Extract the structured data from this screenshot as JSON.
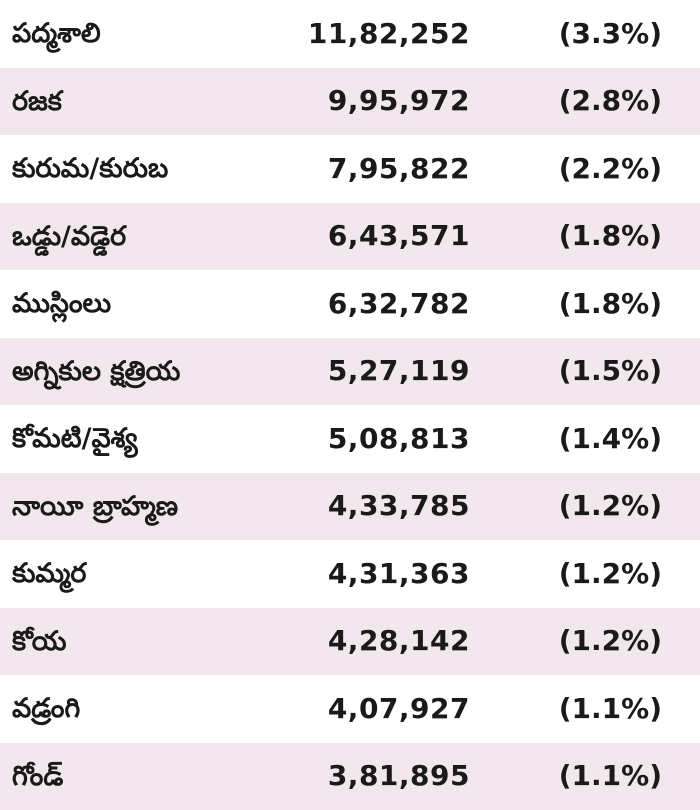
{
  "rows": [
    {
      "caste": "పద్మశాలి",
      "population": "11,82,252",
      "share": "(3.3%)"
    },
    {
      "caste": "రజక",
      "population": "9,95,972",
      "share": "(2.8%)"
    },
    {
      "caste": "కురుమ/కురుబ",
      "population": "7,95,822",
      "share": "(2.2%)"
    },
    {
      "caste": "ఒడ్డు/వడ్డెర",
      "population": "6,43,571",
      "share": "(1.8%)"
    },
    {
      "caste": "ముస్లింలు",
      "population": "6,32,782",
      "share": "(1.8%)"
    },
    {
      "caste": "అగ్నికుల క్షత్రియ",
      "population": "5,27,119",
      "share": "(1.5%)"
    },
    {
      "caste": "కోమటి/వైశ్య",
      "population": "5,08,813",
      "share": "(1.4%)"
    },
    {
      "caste": "నాయీ బ్రాహ్మణ",
      "population": "4,33,785",
      "share": "(1.2%)"
    },
    {
      "caste": "కుమ్మర",
      "population": "4,31,363",
      "share": "(1.2%)"
    },
    {
      "caste": "కోయ",
      "population": "4,28,142",
      "share": "(1.2%)"
    },
    {
      "caste": "వడ్రంగి",
      "population": "4,07,927",
      "share": "(1.1%)"
    },
    {
      "caste": "గోండ్",
      "population": "3,81,895",
      "share": "(1.1%)"
    }
  ],
  "colors": {
    "shaded_row": "#f1e7ec",
    "plain_row": "#ffffff",
    "text": "#1a1a1a"
  }
}
